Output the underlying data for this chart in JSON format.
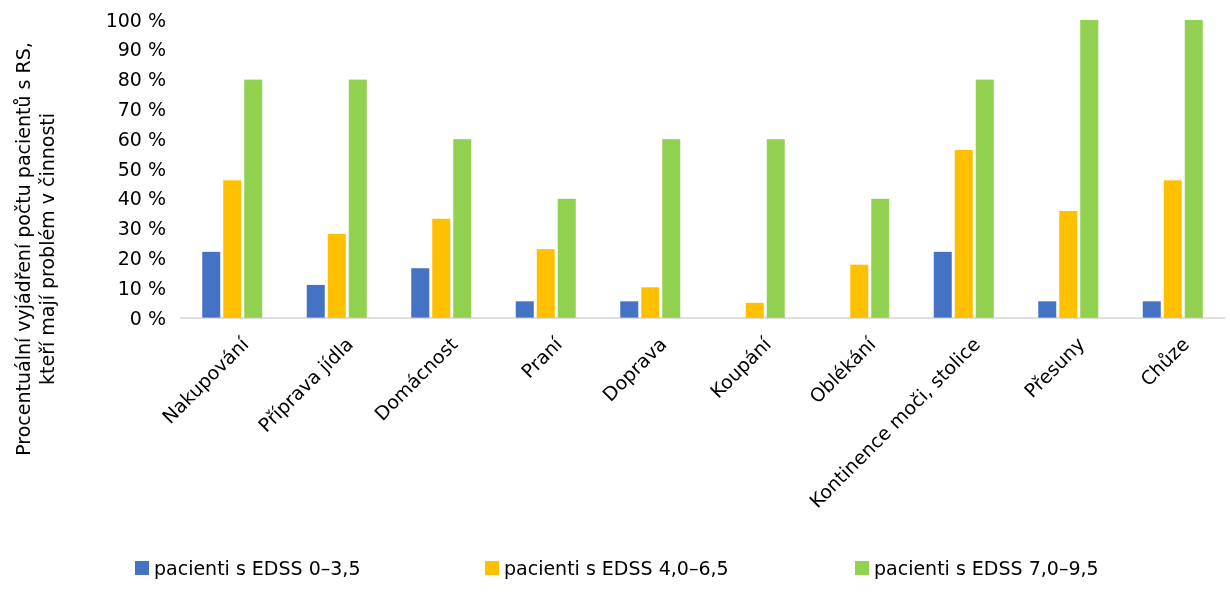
{
  "chart_data": {
    "type": "bar",
    "ylabel": "Procentuální vyjádření počtu pacientů s RS, kteří mají problém v činnosti",
    "categories": [
      "Nakupování",
      "Příprava jídla",
      "Domácnost",
      "Praní",
      "Doprava",
      "Koupání",
      "Oblékání",
      "Kontinence moči, stolice",
      "Přesuny",
      "Chůze"
    ],
    "series": [
      {
        "name": "pacienti s EDSS 0–3,5",
        "color": "#4472c4",
        "values": [
          22.2,
          11.1,
          16.7,
          5.6,
          5.6,
          0,
          0,
          22.2,
          5.6,
          5.6
        ]
      },
      {
        "name": "pacienti s EDSS 4,0–6,5",
        "color": "#ffc000",
        "values": [
          46.2,
          28.2,
          33.3,
          23.1,
          10.3,
          5.1,
          17.9,
          56.4,
          35.9,
          46.2
        ]
      },
      {
        "name": "pacienti s EDSS 7,0–9,5",
        "color": "#92d050",
        "values": [
          80,
          80,
          60,
          40,
          60,
          60,
          40,
          80,
          100,
          100
        ]
      }
    ],
    "ylim": [
      0,
      100
    ],
    "yticks": [
      {
        "value": 0,
        "label": "0 %"
      },
      {
        "value": 10,
        "label": "10 %"
      },
      {
        "value": 20,
        "label": "20 %"
      },
      {
        "value": 30,
        "label": "30 %"
      },
      {
        "value": 40,
        "label": "40 %"
      },
      {
        "value": 50,
        "label": "50 %"
      },
      {
        "value": 60,
        "label": "60 %"
      },
      {
        "value": 70,
        "label": "70 %"
      },
      {
        "value": 80,
        "label": "80 %"
      },
      {
        "value": 90,
        "label": "90 %"
      },
      {
        "value": 100,
        "label": "100 %"
      }
    ],
    "legend": "bottom"
  }
}
